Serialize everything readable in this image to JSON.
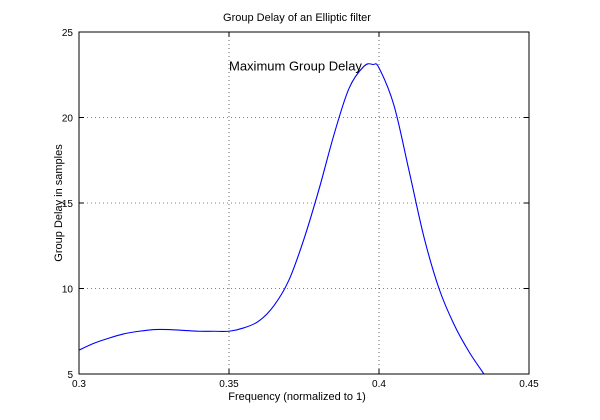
{
  "chart_data": {
    "type": "line",
    "title": "Group Delay of an Elliptic filter",
    "xlabel": "Frequency (normalized to 1)",
    "ylabel": "Group Delay in samples",
    "xlim": [
      0.3,
      0.45
    ],
    "ylim": [
      5,
      25
    ],
    "xticks": [
      "0.3",
      "0.35",
      "0.4",
      "0.45"
    ],
    "yticks": [
      "5",
      "10",
      "15",
      "20",
      "25"
    ],
    "grid": true,
    "annotation": {
      "text": "Maximum Group Delay",
      "x": 0.35,
      "y": 22.75
    },
    "series": [
      {
        "color": "#0000ff",
        "x": [
          0.3,
          0.305,
          0.31,
          0.315,
          0.32,
          0.325,
          0.33,
          0.335,
          0.34,
          0.345,
          0.35,
          0.355,
          0.36,
          0.365,
          0.37,
          0.375,
          0.38,
          0.385,
          0.39,
          0.395,
          0.398,
          0.4,
          0.405,
          0.41,
          0.415,
          0.42,
          0.425,
          0.43,
          0.435
        ],
        "y": [
          6.4,
          6.8,
          7.1,
          7.35,
          7.5,
          7.6,
          7.6,
          7.55,
          7.5,
          7.5,
          7.5,
          7.7,
          8.1,
          9.0,
          10.5,
          12.9,
          15.8,
          19.0,
          21.7,
          23.0,
          23.1,
          22.9,
          20.7,
          16.9,
          13.0,
          10.0,
          7.9,
          6.3,
          5.0
        ]
      }
    ]
  }
}
